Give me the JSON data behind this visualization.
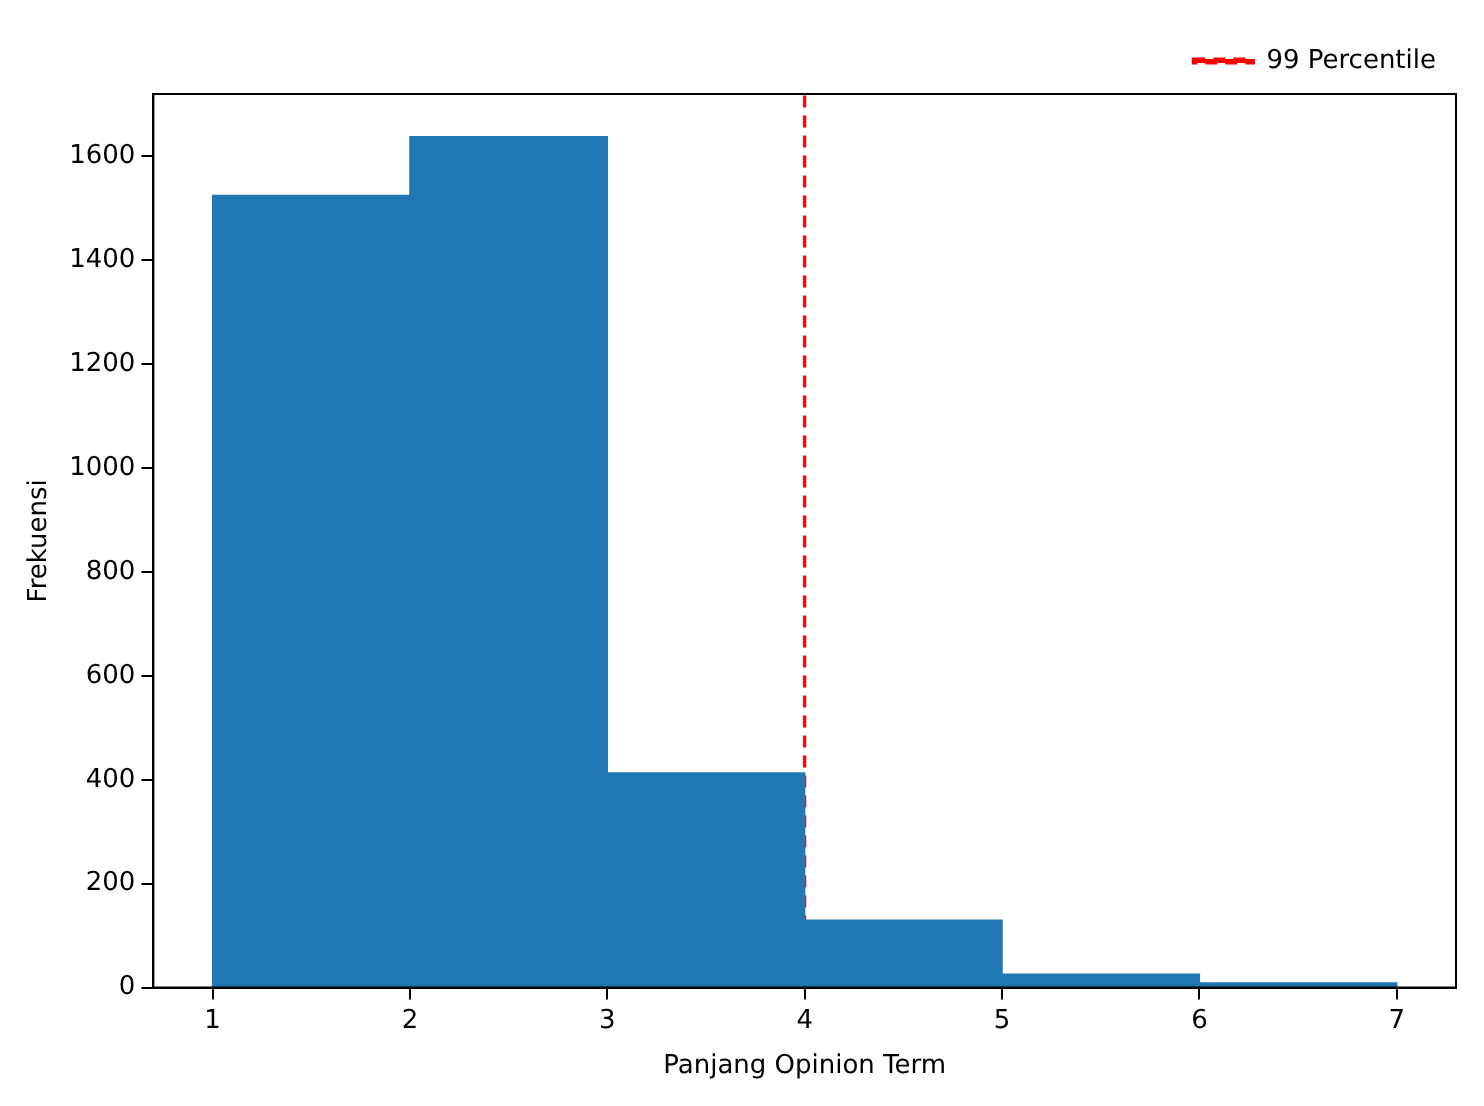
{
  "chart_data": {
    "type": "histogram",
    "xlabel": "Panjang Opinion Term",
    "ylabel": "Frekuensi",
    "bins": [
      1,
      2,
      3,
      4,
      5,
      6,
      7
    ],
    "values": [
      1525,
      1638,
      413,
      130,
      26,
      9
    ],
    "color": "#1f77b4",
    "xlim": [
      0.7,
      7.3
    ],
    "xticks": [
      1,
      2,
      3,
      4,
      5,
      6,
      7
    ],
    "ylim": [
      0,
      1720
    ],
    "yticks": [
      0,
      200,
      400,
      600,
      800,
      1000,
      1200,
      1400,
      1600
    ],
    "ref_lines": [
      {
        "axis": "x",
        "value": 4,
        "label": "99 Percentile",
        "color": "#ff0000",
        "line_style": "dashed"
      }
    ],
    "legend": "top right",
    "grid": false
  }
}
